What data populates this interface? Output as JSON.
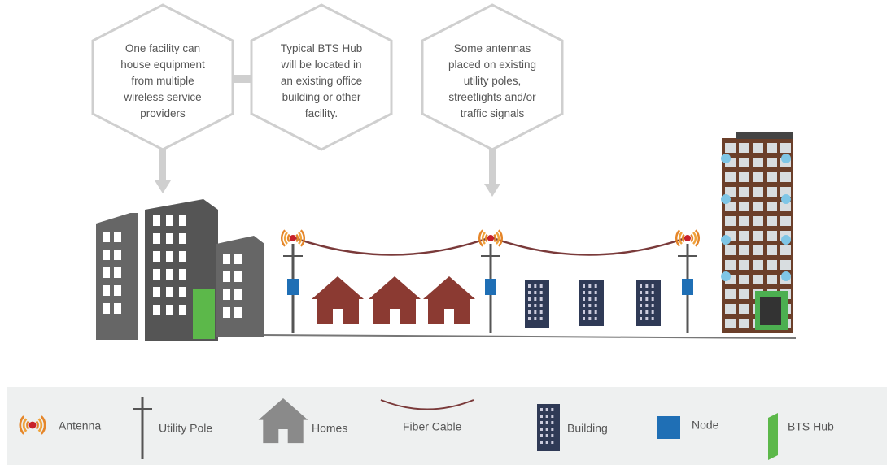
{
  "callouts": [
    {
      "lines": [
        "One facility can",
        "house equipment",
        "from multiple",
        "wireless service",
        "providers"
      ]
    },
    {
      "lines": [
        "Typical BTS Hub",
        "will be located in",
        "an existing office",
        "building or other",
        "facility."
      ]
    },
    {
      "lines": [
        "Some antennas",
        "placed on existing",
        "utility poles,",
        "streetlights and/or",
        "traffic signals"
      ]
    }
  ],
  "legend": {
    "antenna": "Antenna",
    "utility_pole": "Utility Pole",
    "homes": "Homes",
    "fiber_cable": "Fiber Cable",
    "building": "Building",
    "node": "Node",
    "bts_hub": "BTS Hub"
  }
}
